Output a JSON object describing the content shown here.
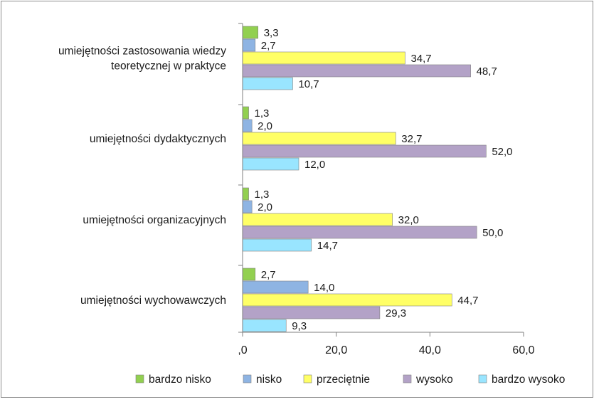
{
  "chart_data": {
    "type": "bar",
    "orientation": "horizontal",
    "categories": [
      [
        "umiejętności zastosowania wiedzy",
        "teoretycznej w praktyce"
      ],
      [
        "umiejętności dydaktycznych"
      ],
      [
        "umiejętności organizacyjnych"
      ],
      [
        "umiejętności wychowawczych"
      ]
    ],
    "series": [
      {
        "name": "bardzo nisko",
        "color": "#92D050",
        "values": [
          3.3,
          1.3,
          1.3,
          2.7
        ],
        "labels": [
          "3,3",
          "1,3",
          "1,3",
          "2,7"
        ]
      },
      {
        "name": "nisko",
        "color": "#8EB4E3",
        "values": [
          2.7,
          2.0,
          2.0,
          14.0
        ],
        "labels": [
          "2,7",
          "2,0",
          "2,0",
          "14,0"
        ]
      },
      {
        "name": "przeciętnie",
        "color": "#FFFF66",
        "values": [
          34.7,
          32.7,
          32.0,
          44.7
        ],
        "labels": [
          "34,7",
          "32,7",
          "32,0",
          "44,7"
        ]
      },
      {
        "name": "wysoko",
        "color": "#B3A2C7",
        "values": [
          48.7,
          52.0,
          50.0,
          29.3
        ],
        "labels": [
          "48,7",
          "52,0",
          "50,0",
          "29,3"
        ]
      },
      {
        "name": "bardzo wysoko",
        "color": "#99E5FF",
        "values": [
          10.7,
          12.0,
          14.7,
          9.3
        ],
        "labels": [
          "10,7",
          "12,0",
          "14,7",
          "9,3"
        ]
      }
    ],
    "xlim": [
      0,
      60
    ],
    "xticks": [
      0,
      20,
      40,
      60
    ],
    "xtick_labels": [
      ",0",
      "20,0",
      "40,0",
      "60,0"
    ],
    "title": "",
    "xlabel": "",
    "ylabel": "",
    "legend": "bottom",
    "grid": false
  }
}
